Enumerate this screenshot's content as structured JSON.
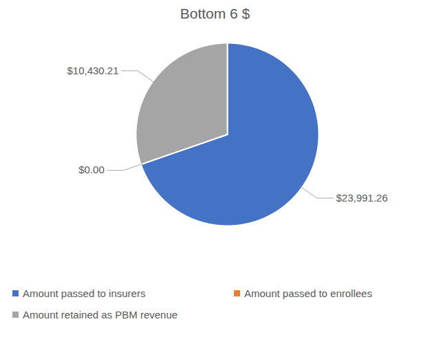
{
  "chart_data": {
    "type": "pie",
    "title": "Bottom 6 $",
    "categories": [
      "Amount passed to insurers",
      "Amount passed to enrollees",
      "Amount retained as PBM revenue"
    ],
    "values": [
      23991.26,
      0,
      10430.21
    ],
    "value_labels": [
      "$23,991.26",
      "$0.00",
      "$10,430.21"
    ],
    "colors": [
      "#4472c4",
      "#ed7d31",
      "#a5a5a5"
    ],
    "data_labels": true,
    "legend": "bottom"
  }
}
